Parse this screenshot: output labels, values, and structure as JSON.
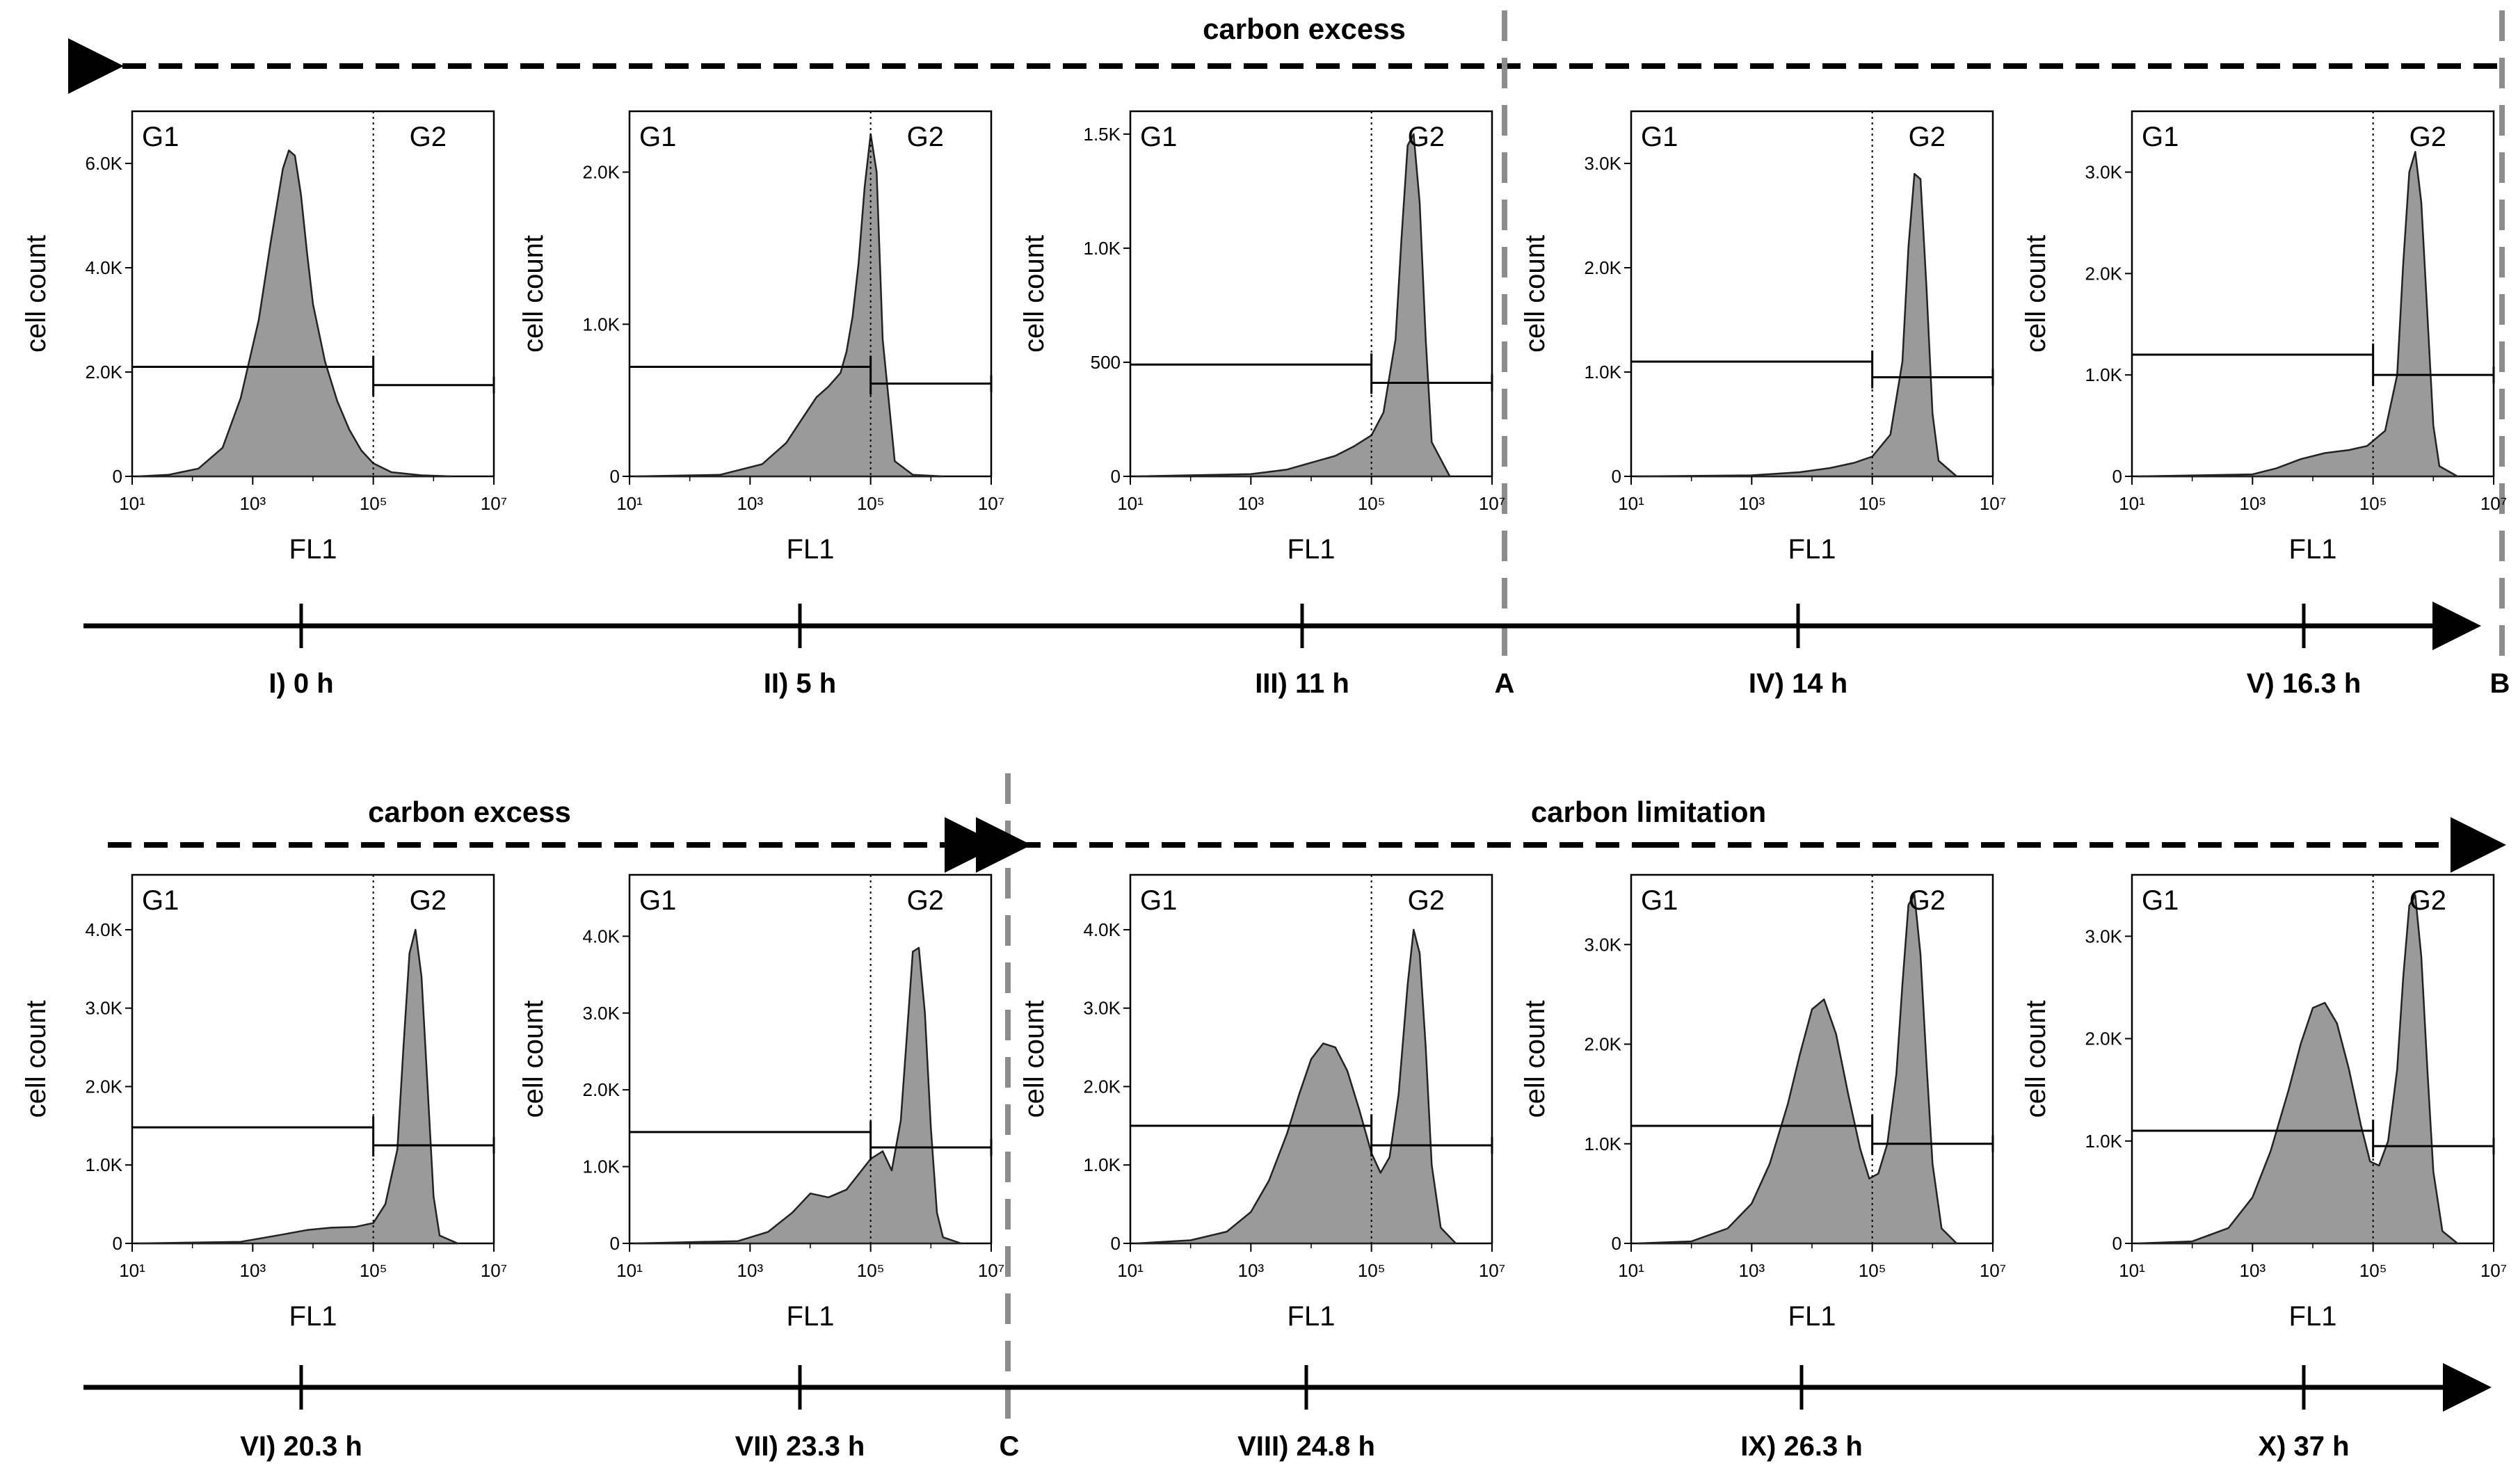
{
  "figure": {
    "top_row": {
      "region_label": "carbon excess",
      "phase_markers": [
        "A",
        "B"
      ],
      "timepoints": [
        "I) 0 h",
        "II) 5 h",
        "III) 11 h",
        "IV) 14 h",
        "V) 16.3 h"
      ]
    },
    "bottom_row": {
      "region_labels": [
        "carbon excess",
        "carbon limitation"
      ],
      "phase_markers": [
        "C"
      ],
      "timepoints": [
        "VI) 20.3 h",
        "VII) 23.3 h",
        "VIII) 24.8 h",
        "IX) 26.3 h",
        "X) 37 h"
      ]
    }
  },
  "chart_data": [
    {
      "type": "area",
      "panel": "I) 0 h",
      "xlabel": "FL1",
      "ylabel": "cell count",
      "gate_labels": [
        "G1",
        "G2"
      ],
      "x_tick_labels": [
        "10¹",
        "10³",
        "10⁵",
        "10⁷"
      ],
      "y_tick_labels": [
        "0",
        "2.0K",
        "4.0K",
        "6.0K"
      ],
      "y_tick_values": [
        0,
        2000,
        4000,
        6000
      ],
      "ylim": [
        0,
        7000
      ],
      "xlim": [
        1,
        7
      ],
      "gate_boundary": 5,
      "x": [
        1.1,
        1.6,
        2.1,
        2.5,
        2.8,
        3.1,
        3.3,
        3.5,
        3.6,
        3.7,
        3.8,
        3.9,
        4.0,
        4.2,
        4.4,
        4.6,
        4.8,
        5.0,
        5.3,
        5.8,
        6.3
      ],
      "y": [
        0,
        30,
        150,
        550,
        1500,
        3000,
        4500,
        5900,
        6250,
        6150,
        5400,
        4300,
        3300,
        2200,
        1450,
        900,
        500,
        250,
        80,
        20,
        0
      ],
      "gate_g1_count": 2100,
      "gate_g2_count": 1750
    },
    {
      "type": "area",
      "panel": "II) 5 h",
      "xlabel": "FL1",
      "ylabel": "cell count",
      "gate_labels": [
        "G1",
        "G2"
      ],
      "x_tick_labels": [
        "10¹",
        "10³",
        "10⁵",
        "10⁷"
      ],
      "y_tick_labels": [
        "0",
        "1.0K",
        "2.0K"
      ],
      "y_tick_values": [
        0,
        1000,
        2000
      ],
      "ylim": [
        0,
        2400
      ],
      "xlim": [
        1,
        7
      ],
      "gate_boundary": 5,
      "x": [
        1.1,
        2.5,
        3.2,
        3.6,
        3.9,
        4.1,
        4.3,
        4.5,
        4.6,
        4.7,
        4.8,
        4.9,
        5.0,
        5.1,
        5.2,
        5.4,
        5.7,
        6.2
      ],
      "y": [
        0,
        10,
        80,
        220,
        400,
        520,
        590,
        680,
        820,
        1050,
        1400,
        1900,
        2250,
        2000,
        900,
        100,
        10,
        0
      ],
      "gate_g1_count": 720,
      "gate_g2_count": 610
    },
    {
      "type": "area",
      "panel": "III) 11 h",
      "xlabel": "FL1",
      "ylabel": "cell count",
      "gate_labels": [
        "G1",
        "G2"
      ],
      "x_tick_labels": [
        "10¹",
        "10³",
        "10⁵",
        "10⁷"
      ],
      "y_tick_labels": [
        "0",
        "500",
        "1.0K",
        "1.5K"
      ],
      "y_tick_values": [
        0,
        500,
        1000,
        1500
      ],
      "ylim": [
        0,
        1600
      ],
      "xlim": [
        1,
        7
      ],
      "gate_boundary": 5,
      "x": [
        1.1,
        3.0,
        3.6,
        4.0,
        4.4,
        4.7,
        5.0,
        5.2,
        5.4,
        5.5,
        5.6,
        5.7,
        5.8,
        5.9,
        6.0,
        6.3
      ],
      "y": [
        0,
        10,
        30,
        60,
        90,
        130,
        180,
        280,
        600,
        1050,
        1450,
        1500,
        1200,
        600,
        150,
        0
      ],
      "gate_g1_count": 490,
      "gate_g2_count": 410
    },
    {
      "type": "area",
      "panel": "IV) 14 h",
      "xlabel": "FL1",
      "ylabel": "cell count",
      "gate_labels": [
        "G1",
        "G2"
      ],
      "x_tick_labels": [
        "10¹",
        "10³",
        "10⁵",
        "10⁷"
      ],
      "y_tick_labels": [
        "0",
        "1.0K",
        "2.0K",
        "3.0K"
      ],
      "y_tick_values": [
        0,
        1000,
        2000,
        3000
      ],
      "ylim": [
        0,
        3500
      ],
      "xlim": [
        1,
        7
      ],
      "gate_boundary": 5,
      "x": [
        1.1,
        3.0,
        3.8,
        4.3,
        4.7,
        5.0,
        5.3,
        5.5,
        5.6,
        5.7,
        5.8,
        5.9,
        6.0,
        6.1,
        6.4
      ],
      "y": [
        0,
        10,
        40,
        80,
        130,
        190,
        400,
        1100,
        2200,
        2900,
        2850,
        1800,
        600,
        150,
        0
      ],
      "gate_g1_count": 1100,
      "gate_g2_count": 950
    },
    {
      "type": "area",
      "panel": "V) 16.3 h",
      "xlabel": "FL1",
      "ylabel": "cell count",
      "gate_labels": [
        "G1",
        "G2"
      ],
      "x_tick_labels": [
        "10¹",
        "10³",
        "10⁵",
        "10⁷"
      ],
      "y_tick_labels": [
        "0",
        "1.0K",
        "2.0K",
        "3.0K"
      ],
      "y_tick_values": [
        0,
        1000,
        2000,
        3000
      ],
      "ylim": [
        0,
        3600
      ],
      "xlim": [
        1,
        7
      ],
      "gate_boundary": 5,
      "x": [
        1.1,
        3.0,
        3.4,
        3.8,
        4.2,
        4.6,
        4.9,
        5.2,
        5.4,
        5.5,
        5.6,
        5.7,
        5.8,
        5.9,
        6.0,
        6.1,
        6.4
      ],
      "y": [
        0,
        20,
        80,
        170,
        230,
        260,
        300,
        450,
        1000,
        2100,
        3000,
        3200,
        2700,
        1600,
        500,
        100,
        0
      ],
      "gate_g1_count": 1200,
      "gate_g2_count": 1000
    },
    {
      "type": "area",
      "panel": "VI) 20.3 h",
      "xlabel": "FL1",
      "ylabel": "cell count",
      "gate_labels": [
        "G1",
        "G2"
      ],
      "x_tick_labels": [
        "10¹",
        "10³",
        "10⁵",
        "10⁷"
      ],
      "y_tick_labels": [
        "0",
        "1.0K",
        "2.0K",
        "3.0K",
        "4.0K"
      ],
      "y_tick_values": [
        0,
        1000,
        2000,
        3000,
        4000
      ],
      "ylim": [
        0,
        4700
      ],
      "xlim": [
        1,
        7
      ],
      "gate_boundary": 5,
      "x": [
        1.1,
        2.8,
        3.4,
        3.9,
        4.3,
        4.7,
        5.0,
        5.2,
        5.4,
        5.5,
        5.6,
        5.7,
        5.8,
        5.9,
        6.0,
        6.1,
        6.4
      ],
      "y": [
        0,
        20,
        100,
        170,
        200,
        210,
        260,
        500,
        1200,
        2500,
        3700,
        4000,
        3400,
        2000,
        600,
        100,
        0
      ],
      "gate_g1_count": 1480,
      "gate_g2_count": 1250
    },
    {
      "type": "area",
      "panel": "VII) 23.3 h",
      "xlabel": "FL1",
      "ylabel": "cell count",
      "gate_labels": [
        "G1",
        "G2"
      ],
      "x_tick_labels": [
        "10¹",
        "10³",
        "10⁵",
        "10⁷"
      ],
      "y_tick_labels": [
        "0",
        "1.0K",
        "2.0K",
        "3.0K",
        "4.0K"
      ],
      "y_tick_values": [
        0,
        1000,
        2000,
        3000,
        4000
      ],
      "ylim": [
        0,
        4800
      ],
      "xlim": [
        1,
        7
      ],
      "gate_boundary": 5,
      "x": [
        1.1,
        2.8,
        3.3,
        3.7,
        4.0,
        4.3,
        4.6,
        4.8,
        5.0,
        5.2,
        5.35,
        5.5,
        5.6,
        5.7,
        5.8,
        5.9,
        6.0,
        6.1,
        6.2,
        6.5
      ],
      "y": [
        0,
        30,
        150,
        400,
        650,
        600,
        700,
        900,
        1100,
        1200,
        950,
        1600,
        2700,
        3800,
        3850,
        3000,
        1500,
        400,
        80,
        0
      ],
      "gate_g1_count": 1450,
      "gate_g2_count": 1250
    },
    {
      "type": "area",
      "panel": "VIII) 24.8 h",
      "xlabel": "FL1",
      "ylabel": "cell count",
      "gate_labels": [
        "G1",
        "G2"
      ],
      "x_tick_labels": [
        "10¹",
        "10³",
        "10⁵",
        "10⁷"
      ],
      "y_tick_labels": [
        "0",
        "1.0K",
        "2.0K",
        "3.0K",
        "4.0K"
      ],
      "y_tick_values": [
        0,
        1000,
        2000,
        3000,
        4000
      ],
      "ylim": [
        0,
        4700
      ],
      "xlim": [
        1,
        7
      ],
      "gate_boundary": 5,
      "x": [
        1.1,
        2.0,
        2.6,
        3.0,
        3.3,
        3.6,
        3.8,
        4.0,
        4.2,
        4.4,
        4.6,
        4.8,
        5.0,
        5.15,
        5.3,
        5.45,
        5.6,
        5.7,
        5.8,
        5.9,
        6.0,
        6.15,
        6.4
      ],
      "y": [
        0,
        40,
        150,
        400,
        800,
        1400,
        1900,
        2350,
        2550,
        2500,
        2200,
        1700,
        1150,
        900,
        1100,
        1900,
        3300,
        4000,
        3700,
        2500,
        1000,
        200,
        0
      ],
      "gate_g1_count": 1500,
      "gate_g2_count": 1250
    },
    {
      "type": "area",
      "panel": "IX) 26.3 h",
      "xlabel": "FL1",
      "ylabel": "cell count",
      "gate_labels": [
        "G1",
        "G2"
      ],
      "x_tick_labels": [
        "10¹",
        "10³",
        "10⁵",
        "10⁷"
      ],
      "y_tick_labels": [
        "0",
        "1.0K",
        "2.0K",
        "3.0K"
      ],
      "y_tick_values": [
        0,
        1000,
        2000,
        3000
      ],
      "ylim": [
        0,
        3700
      ],
      "xlim": [
        1,
        7
      ],
      "gate_boundary": 5,
      "x": [
        1.1,
        2.0,
        2.6,
        3.0,
        3.3,
        3.6,
        3.8,
        4.0,
        4.2,
        4.4,
        4.6,
        4.8,
        4.95,
        5.1,
        5.25,
        5.4,
        5.5,
        5.6,
        5.7,
        5.8,
        5.9,
        6.0,
        6.15,
        6.4
      ],
      "y": [
        0,
        20,
        150,
        400,
        800,
        1400,
        1900,
        2350,
        2450,
        2100,
        1500,
        950,
        650,
        700,
        1000,
        1700,
        2600,
        3400,
        3500,
        2900,
        1800,
        800,
        150,
        0
      ],
      "gate_g1_count": 1180,
      "gate_g2_count": 1000
    },
    {
      "type": "area",
      "panel": "X) 37 h",
      "xlabel": "FL1",
      "ylabel": "cell count",
      "gate_labels": [
        "G1",
        "G2"
      ],
      "x_tick_labels": [
        "10¹",
        "10³",
        "10⁵",
        "10⁷"
      ],
      "y_tick_labels": [
        "0",
        "1.0K",
        "2.0K",
        "3.0K"
      ],
      "y_tick_values": [
        0,
        1000,
        2000,
        3000
      ],
      "ylim": [
        0,
        3600
      ],
      "xlim": [
        1,
        7
      ],
      "gate_boundary": 5,
      "x": [
        1.1,
        2.0,
        2.6,
        3.0,
        3.3,
        3.6,
        3.8,
        4.0,
        4.2,
        4.4,
        4.6,
        4.8,
        4.95,
        5.1,
        5.25,
        5.4,
        5.5,
        5.6,
        5.7,
        5.8,
        5.9,
        6.0,
        6.15,
        6.4
      ],
      "y": [
        0,
        20,
        150,
        450,
        900,
        1500,
        1950,
        2300,
        2350,
        2150,
        1700,
        1150,
        800,
        760,
        1000,
        1700,
        2600,
        3300,
        3400,
        2800,
        1700,
        700,
        120,
        0
      ],
      "gate_g1_count": 1100,
      "gate_g2_count": 950
    }
  ]
}
